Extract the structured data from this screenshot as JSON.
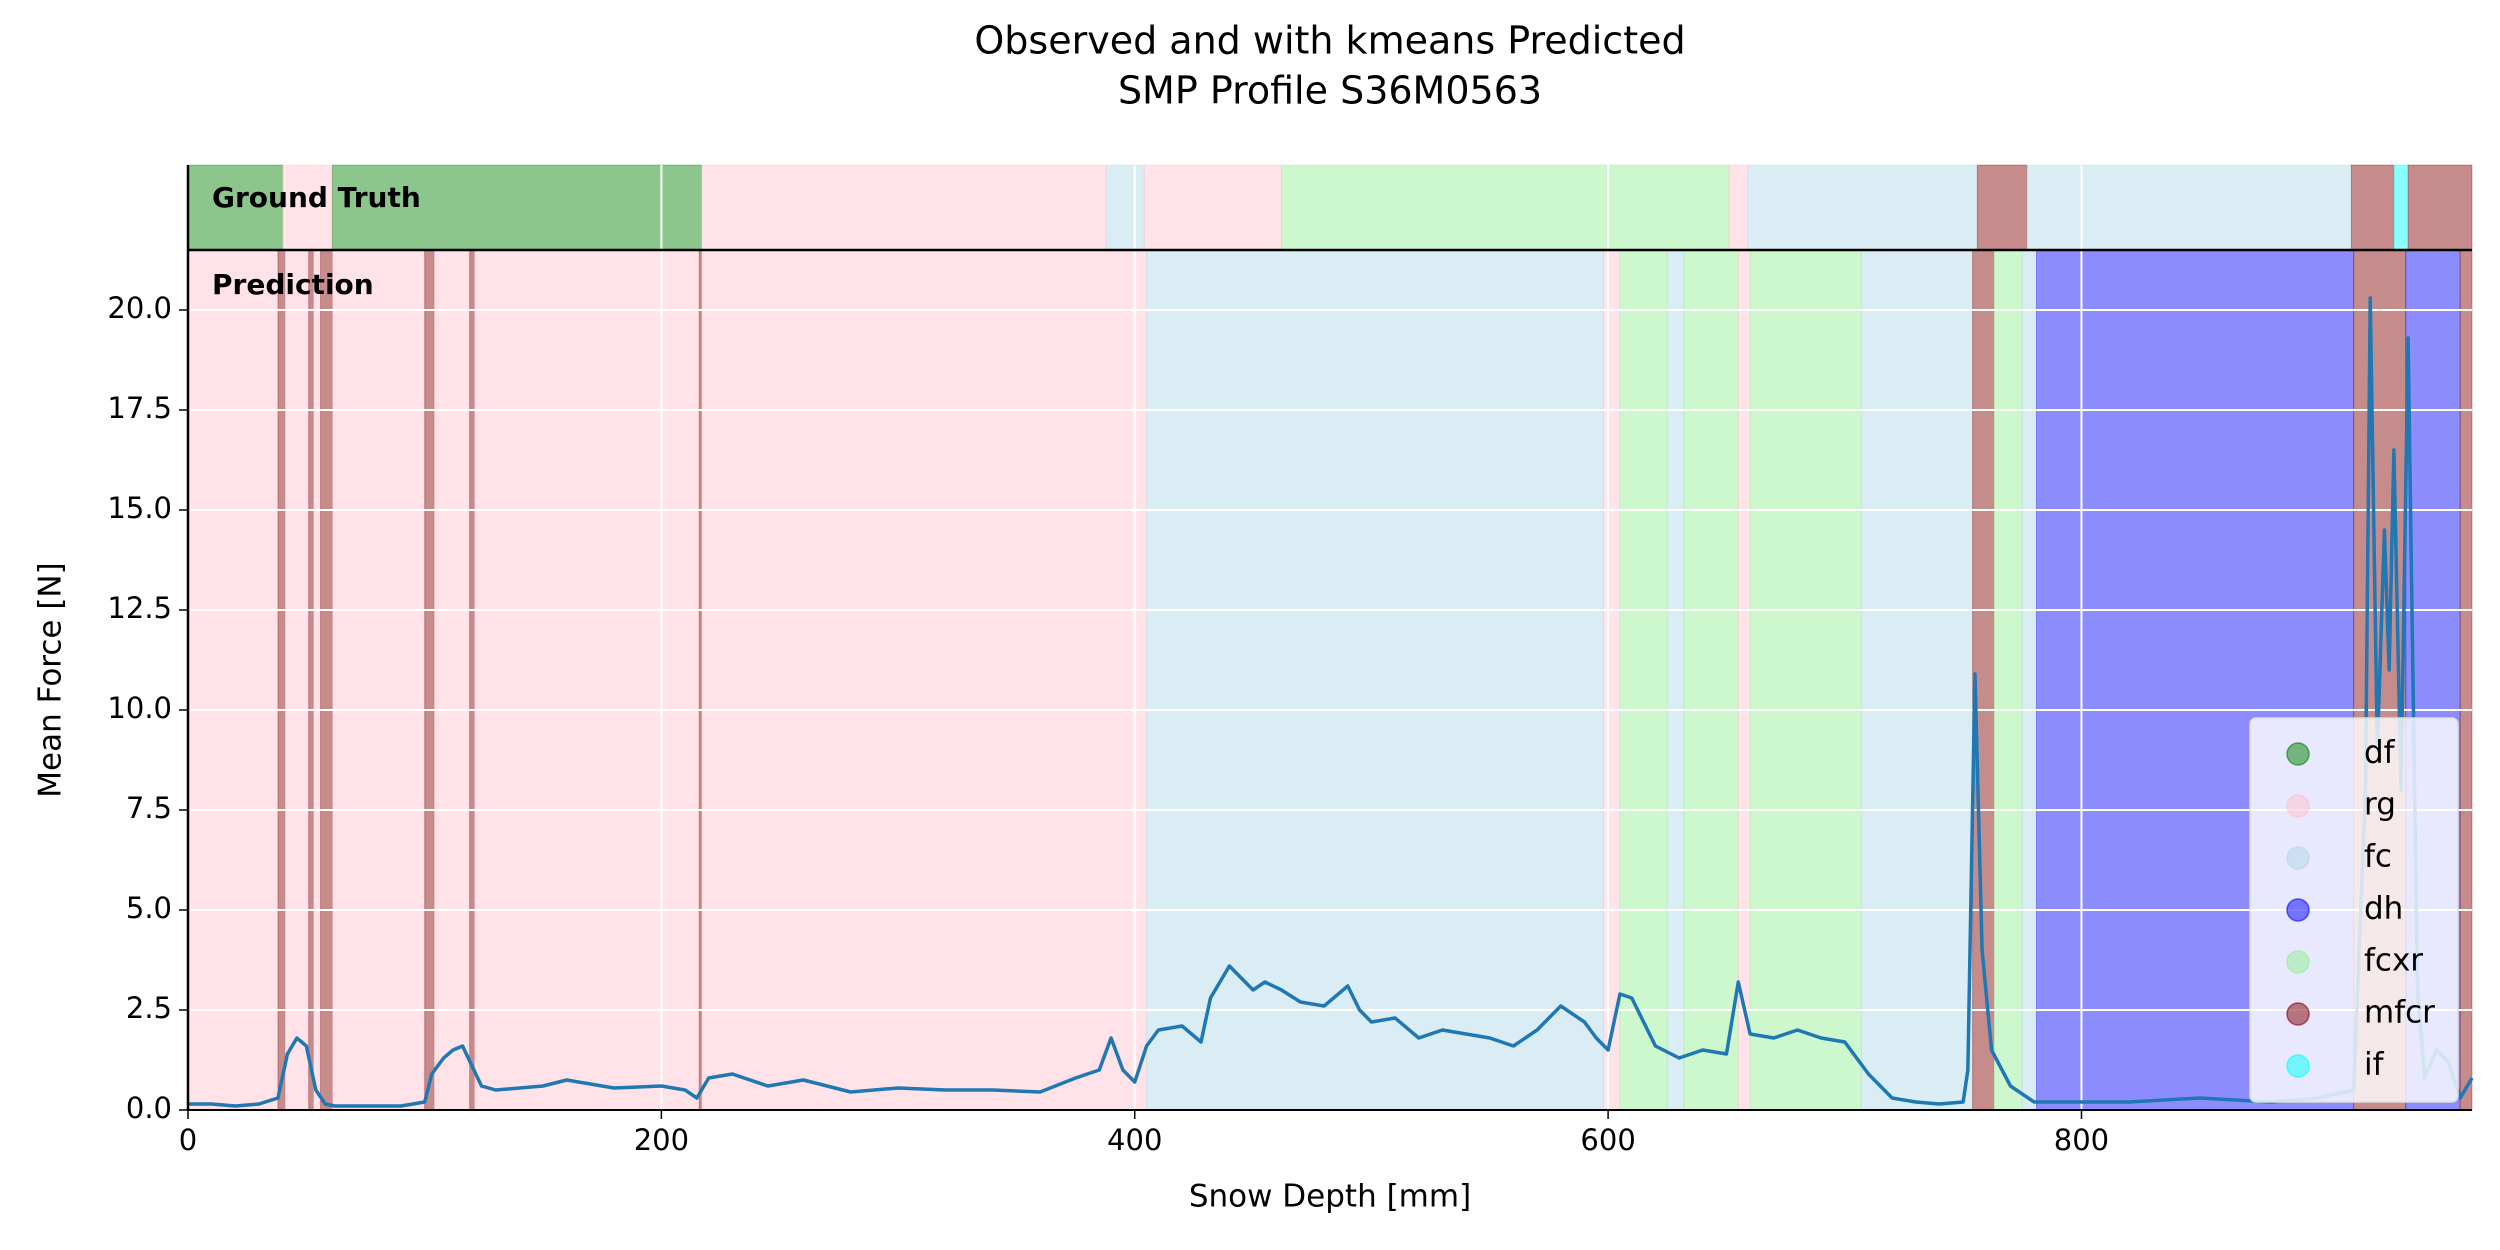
{
  "chart_data": {
    "type": "line",
    "title": [
      "Observed and with kmeans Predicted",
      "SMP Profile S36M0563"
    ],
    "x_label": "Snow Depth [mm]",
    "y_label": "Mean Force [N]",
    "xlim": [
      0,
      965
    ],
    "ylim": [
      0,
      21.5
    ],
    "xticks": [
      0,
      200,
      400,
      600,
      800
    ],
    "yticks": [
      {
        "value": 0,
        "label": "0.0"
      },
      {
        "value": 2.5,
        "label": "2.5"
      },
      {
        "value": 5,
        "label": "5.0"
      },
      {
        "value": 7.5,
        "label": "7.5"
      },
      {
        "value": 10,
        "label": "10.0"
      },
      {
        "value": 12.5,
        "label": "12.5"
      },
      {
        "value": 15,
        "label": "15.0"
      },
      {
        "value": 17.5,
        "label": "17.5"
      },
      {
        "value": 20,
        "label": "20.0"
      }
    ],
    "grid": true,
    "color": "#1f77b4",
    "x": [
      0,
      10,
      20,
      30,
      38,
      42,
      46,
      50,
      54,
      58,
      62,
      70,
      80,
      90,
      100,
      103,
      108,
      112,
      116,
      120,
      124,
      130,
      150,
      160,
      180,
      200,
      210,
      215,
      220,
      230,
      245,
      260,
      280,
      300,
      320,
      340,
      360,
      375,
      385,
      390,
      395,
      400,
      405,
      410,
      420,
      428,
      432,
      440,
      445,
      450,
      455,
      462,
      470,
      480,
      490,
      495,
      500,
      510,
      520,
      530,
      540,
      550,
      560,
      570,
      580,
      590,
      595,
      600,
      605,
      610,
      620,
      630,
      640,
      650,
      655,
      660,
      670,
      680,
      690,
      700,
      710,
      720,
      730,
      740,
      750,
      752,
      755,
      758,
      762,
      770,
      780,
      800,
      820,
      850,
      880,
      900,
      915,
      920,
      922,
      925,
      928,
      930,
      932,
      935,
      938,
      940,
      942,
      945,
      950,
      955,
      960,
      965
    ],
    "values": [
      0.15,
      0.15,
      0.1,
      0.15,
      0.3,
      1.4,
      1.8,
      1.6,
      0.5,
      0.15,
      0.1,
      0.1,
      0.1,
      0.1,
      0.2,
      0.9,
      1.3,
      1.5,
      1.6,
      1.1,
      0.6,
      0.5,
      0.6,
      0.75,
      0.55,
      0.6,
      0.5,
      0.3,
      0.8,
      0.9,
      0.6,
      0.75,
      0.45,
      0.55,
      0.5,
      0.5,
      0.45,
      0.8,
      1.0,
      1.8,
      1.0,
      0.7,
      1.6,
      2.0,
      2.1,
      1.7,
      2.8,
      3.6,
      3.3,
      3.0,
      3.2,
      3.0,
      2.7,
      2.6,
      3.1,
      2.5,
      2.2,
      2.3,
      1.8,
      2.0,
      1.9,
      1.8,
      1.6,
      2.0,
      2.6,
      2.2,
      1.8,
      1.5,
      2.9,
      2.8,
      1.6,
      1.3,
      1.5,
      1.4,
      3.2,
      1.9,
      1.8,
      2.0,
      1.8,
      1.7,
      0.9,
      0.3,
      0.2,
      0.15,
      0.2,
      1.0,
      10.9,
      4.0,
      1.5,
      0.6,
      0.2,
      0.2,
      0.2,
      0.3,
      0.2,
      0.3,
      0.5,
      8.0,
      20.3,
      9.0,
      14.5,
      11.0,
      16.5,
      8.0,
      19.3,
      11.0,
      3.0,
      0.8,
      1.5,
      1.2,
      0.3,
      0.8
    ],
    "classes": [
      {
        "name": "df",
        "color": "#008000"
      },
      {
        "name": "rg",
        "color": "#ffc0cb"
      },
      {
        "name": "fc",
        "color": "#add8e6"
      },
      {
        "name": "dh",
        "color": "#0000ff"
      },
      {
        "name": "fcxr",
        "color": "#90ee90"
      },
      {
        "name": "mfcr",
        "color": "#800000"
      },
      {
        "name": "if",
        "color": "#00ffff"
      }
    ],
    "legend": "lower right",
    "ground_truth": {
      "label": "Ground Truth",
      "segments": [
        {
          "class": "df",
          "start": 0,
          "end": 40
        },
        {
          "class": "rg",
          "start": 40,
          "end": 61
        },
        {
          "class": "df",
          "start": 61,
          "end": 217
        },
        {
          "class": "rg",
          "start": 217,
          "end": 388
        },
        {
          "class": "fc",
          "start": 388,
          "end": 404
        },
        {
          "class": "rg",
          "start": 404,
          "end": 462
        },
        {
          "class": "fcxr",
          "start": 462,
          "end": 651
        },
        {
          "class": "rg",
          "start": 651,
          "end": 659
        },
        {
          "class": "fc",
          "start": 659,
          "end": 756
        },
        {
          "class": "mfcr",
          "start": 756,
          "end": 777
        },
        {
          "class": "fc",
          "start": 777,
          "end": 914
        },
        {
          "class": "mfcr",
          "start": 914,
          "end": 932
        },
        {
          "class": "if",
          "start": 932,
          "end": 938
        },
        {
          "class": "mfcr",
          "start": 938,
          "end": 965
        }
      ]
    },
    "prediction": {
      "label": "Prediction",
      "segments": [
        {
          "class": "rg",
          "start": 0,
          "end": 38
        },
        {
          "class": "mfcr",
          "start": 38,
          "end": 41
        },
        {
          "class": "rg",
          "start": 41,
          "end": 51
        },
        {
          "class": "mfcr",
          "start": 51,
          "end": 53
        },
        {
          "class": "rg",
          "start": 53,
          "end": 56
        },
        {
          "class": "mfcr",
          "start": 56,
          "end": 61
        },
        {
          "class": "rg",
          "start": 61,
          "end": 100
        },
        {
          "class": "mfcr",
          "start": 100,
          "end": 104
        },
        {
          "class": "rg",
          "start": 104,
          "end": 119
        },
        {
          "class": "mfcr",
          "start": 119,
          "end": 121
        },
        {
          "class": "rg",
          "start": 121,
          "end": 216
        },
        {
          "class": "mfcr",
          "start": 216,
          "end": 217
        },
        {
          "class": "rg",
          "start": 217,
          "end": 405
        },
        {
          "class": "fc",
          "start": 405,
          "end": 598
        },
        {
          "class": "rg",
          "start": 598,
          "end": 605
        },
        {
          "class": "fcxr",
          "start": 605,
          "end": 625
        },
        {
          "class": "fc",
          "start": 625,
          "end": 632
        },
        {
          "class": "fcxr",
          "start": 632,
          "end": 655
        },
        {
          "class": "rg",
          "start": 655,
          "end": 660
        },
        {
          "class": "fcxr",
          "start": 660,
          "end": 707
        },
        {
          "class": "fc",
          "start": 707,
          "end": 754
        },
        {
          "class": "mfcr",
          "start": 754,
          "end": 763
        },
        {
          "class": "fcxr",
          "start": 763,
          "end": 775
        },
        {
          "class": "fc",
          "start": 775,
          "end": 781
        },
        {
          "class": "dh",
          "start": 781,
          "end": 915
        },
        {
          "class": "mfcr",
          "start": 915,
          "end": 937
        },
        {
          "class": "dh",
          "start": 937,
          "end": 960
        },
        {
          "class": "mfcr",
          "start": 960,
          "end": 965
        }
      ]
    }
  }
}
